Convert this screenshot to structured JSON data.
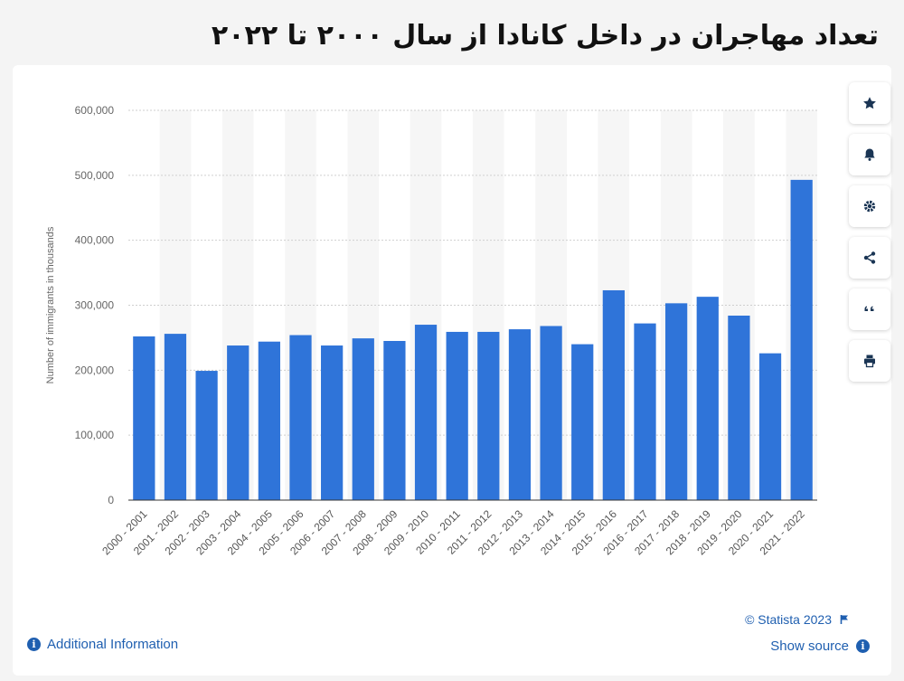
{
  "page": {
    "title": "تعداد مهاجران در داخل کانادا از سال ۲۰۰۰ تا ۲۰۲۲"
  },
  "toolbar": {
    "icons": [
      "star-icon",
      "bell-icon",
      "gear-icon",
      "share-icon",
      "quote-icon",
      "print-icon"
    ]
  },
  "footer": {
    "additional_info": "Additional Information",
    "credit": "© Statista 2023",
    "show_source": "Show source"
  },
  "colors": {
    "bar": "#2f74d9",
    "link": "#1f5fb0",
    "grid": "#cfcfcf"
  },
  "chart_data": {
    "type": "bar",
    "ylabel": "Number of immigrants in thousands",
    "ylim": [
      0,
      600000
    ],
    "yticks": [
      0,
      100000,
      200000,
      300000,
      400000,
      500000,
      600000
    ],
    "ytick_labels": [
      "0",
      "100,000",
      "200,000",
      "300,000",
      "400,000",
      "500,000",
      "600,000"
    ],
    "categories": [
      "2000 - 2001",
      "2001 - 2002",
      "2002 - 2003",
      "2003 - 2004",
      "2004 - 2005",
      "2005 - 2006",
      "2006 - 2007",
      "2007 - 2008",
      "2008 - 2009",
      "2009 - 2010",
      "2010 - 2011",
      "2011 - 2012",
      "2012 - 2013",
      "2013 - 2014",
      "2014 - 2015",
      "2015 - 2016",
      "2016 - 2017",
      "2017 - 2018",
      "2018 - 2019",
      "2019 - 2020",
      "2020 - 2021",
      "2021 - 2022"
    ],
    "values": [
      252000,
      256000,
      199000,
      238000,
      244000,
      254000,
      238000,
      249000,
      245000,
      270000,
      259000,
      259000,
      263000,
      268000,
      240000,
      323000,
      272000,
      303000,
      313000,
      284000,
      226000,
      493000
    ],
    "grid": true,
    "alternating_column_bands": true
  }
}
